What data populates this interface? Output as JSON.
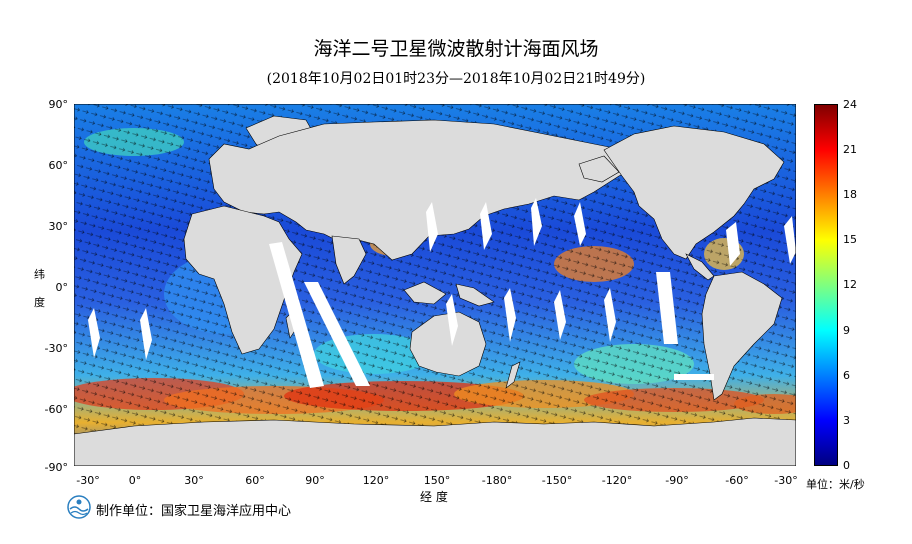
{
  "title": "海洋二号卫星微波散射计海面风场",
  "subtitle": "(2018年10月02日01时23分—2018年10月02日21时49分)",
  "y_axis": {
    "label_chars": [
      "纬",
      "度"
    ],
    "ticks": [
      "90°",
      "60°",
      "30°",
      "0°",
      "-30°",
      "-60°",
      "-90°"
    ]
  },
  "x_axis": {
    "label": "经  度",
    "ticks": [
      "-30°",
      "0°",
      "30°",
      "60°",
      "90°",
      "120°",
      "150°",
      "-180°",
      "-150°",
      "-120°",
      "-90°",
      "-60°",
      "-30°"
    ]
  },
  "colorbar": {
    "ticks": [
      "24",
      "21",
      "18",
      "15",
      "12",
      "9",
      "6",
      "3",
      "0"
    ],
    "unit": "单位：米/秒",
    "colors": [
      "#00007f",
      "#0000ff",
      "#007fff",
      "#00ffff",
      "#7fff7f",
      "#ffff00",
      "#ff7f00",
      "#ff0000",
      "#7f0000"
    ]
  },
  "footer": "制作单位：国家卫星海洋应用中心",
  "colors": {
    "land": "#dcdcdc",
    "gap": "#ffffff",
    "vector": "#000000"
  }
}
